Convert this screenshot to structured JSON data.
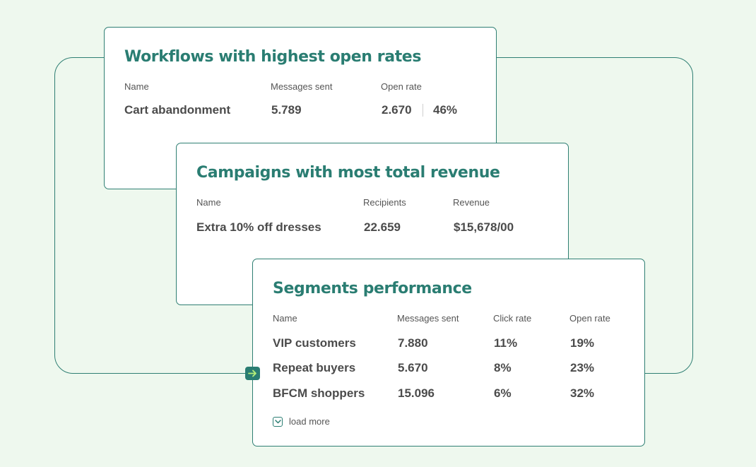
{
  "workflows": {
    "title": "Workflows with highest open rates",
    "headers": {
      "name": "Name",
      "messages_sent": "Messages sent",
      "open_rate": "Open rate"
    },
    "row": {
      "name": "Cart abandonment",
      "messages_sent": "5.789",
      "opens": "2.670",
      "open_rate": "46%"
    }
  },
  "campaigns": {
    "title": "Campaigns with most total revenue",
    "headers": {
      "name": "Name",
      "recipients": "Recipients",
      "revenue": "Revenue"
    },
    "row": {
      "name": "Extra 10% off dresses",
      "recipients": "22.659",
      "revenue": "$15,678/00"
    }
  },
  "segments": {
    "title": "Segments performance",
    "headers": {
      "name": "Name",
      "messages_sent": "Messages sent",
      "click_rate": "Click rate",
      "open_rate": "Open rate"
    },
    "rows": [
      {
        "name": "VIP customers",
        "messages_sent": "7.880",
        "click_rate": "11%",
        "open_rate": "19%"
      },
      {
        "name": "Repeat buyers",
        "messages_sent": "5.670",
        "click_rate": "8%",
        "open_rate": "23%"
      },
      {
        "name": "BFCM shoppers",
        "messages_sent": "15.096",
        "click_rate": "6%",
        "open_rate": "32%"
      }
    ],
    "load_more_label": "load more"
  },
  "icons": {
    "arrow_badge": "arrow-right-icon",
    "load_more": "chevron-down-icon"
  },
  "colors": {
    "background": "#eef8ee",
    "accent": "#2a7d72",
    "arrow": "#b6f07a"
  }
}
